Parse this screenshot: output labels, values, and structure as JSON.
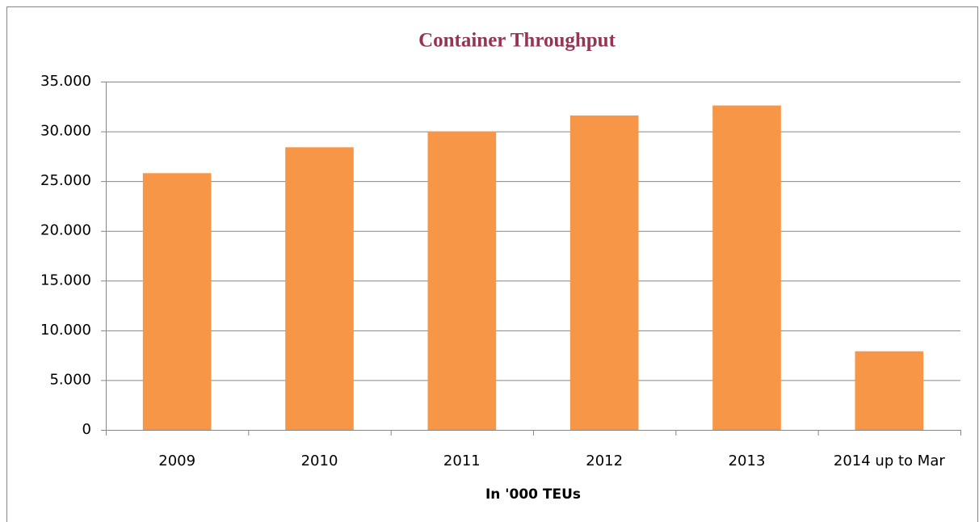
{
  "chart_data": {
    "type": "bar",
    "title": "Container Throughput",
    "xlabel": "In '000 TEUs",
    "categories": [
      "2009",
      "2010",
      "2011",
      "2012",
      "2013",
      "2014 up to Mar"
    ],
    "values": [
      25800,
      28400,
      30000,
      31600,
      32600,
      7900
    ],
    "color": "#f79646",
    "ylim": [
      0,
      35000
    ],
    "yticks": [
      0,
      {
        "value": 5000,
        "label": "5.000"
      },
      {
        "value": 10000,
        "label": "10.000"
      },
      {
        "value": 15000,
        "label": "15.000"
      },
      {
        "value": 20000,
        "label": "20.000"
      },
      {
        "value": 25000,
        "label": "25.000"
      },
      {
        "value": 30000,
        "label": "30.000"
      },
      {
        "value": 35000,
        "label": "35.000"
      }
    ],
    "grid": true
  }
}
